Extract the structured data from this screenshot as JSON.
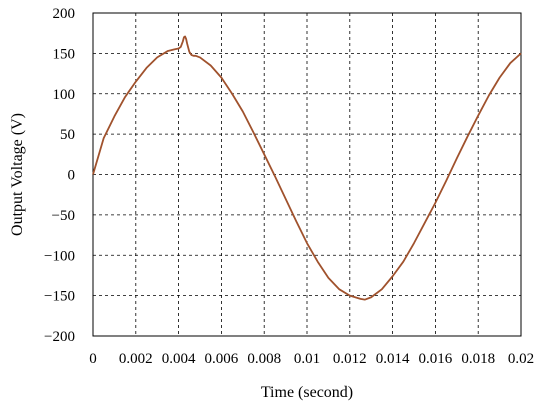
{
  "chart_data": {
    "type": "line",
    "title": "",
    "xlabel": "Time (second)",
    "ylabel": "Output Voltage (V)",
    "xlim": [
      0,
      0.02
    ],
    "ylim": [
      -200,
      200
    ],
    "x_ticks": [
      0,
      0.002,
      0.004,
      0.006,
      0.008,
      0.01,
      0.012,
      0.014,
      0.016,
      0.018,
      0.02
    ],
    "x_tick_labels": [
      "0",
      "0.002",
      "0.004",
      "0.006",
      "0.008",
      "0.01",
      "0.012",
      "0.014",
      "0.016",
      "0.018",
      "0.02"
    ],
    "y_ticks": [
      200,
      150,
      100,
      50,
      0,
      -50,
      -100,
      -150,
      -200
    ],
    "y_tick_labels": [
      "200",
      "150",
      "100",
      "50",
      "0",
      "−50",
      "−100",
      "−150",
      "−200"
    ],
    "grid": true,
    "grid_style": "dashed",
    "legend": "none",
    "series": [
      {
        "color": "#a0522d",
        "x": [
          0,
          0.0005,
          0.001,
          0.0015,
          0.002,
          0.0025,
          0.003,
          0.0035,
          0.0038,
          0.004,
          0.0041,
          0.0042,
          0.00425,
          0.0043,
          0.00435,
          0.0044,
          0.0045,
          0.0046,
          0.0047,
          0.0048,
          0.005,
          0.0055,
          0.006,
          0.0065,
          0.007,
          0.0075,
          0.008,
          0.0085,
          0.009,
          0.0095,
          0.01,
          0.0105,
          0.011,
          0.0115,
          0.012,
          0.0125,
          0.0127,
          0.013,
          0.0135,
          0.014,
          0.0145,
          0.015,
          0.0155,
          0.016,
          0.0165,
          0.017,
          0.0175,
          0.018,
          0.0185,
          0.019,
          0.0195,
          0.02
        ],
        "y": [
          0,
          45,
          72,
          96,
          115,
          132,
          145,
          153,
          155,
          156,
          158,
          165,
          170,
          171,
          168,
          162,
          152,
          148,
          147,
          147,
          145,
          135,
          120,
          100,
          78,
          52,
          25,
          -2,
          -30,
          -58,
          -85,
          -108,
          -128,
          -142,
          -150,
          -154,
          -155,
          -152,
          -142,
          -126,
          -108,
          -85,
          -60,
          -35,
          -8,
          20,
          47,
          73,
          98,
          120,
          138,
          150
        ]
      }
    ]
  }
}
